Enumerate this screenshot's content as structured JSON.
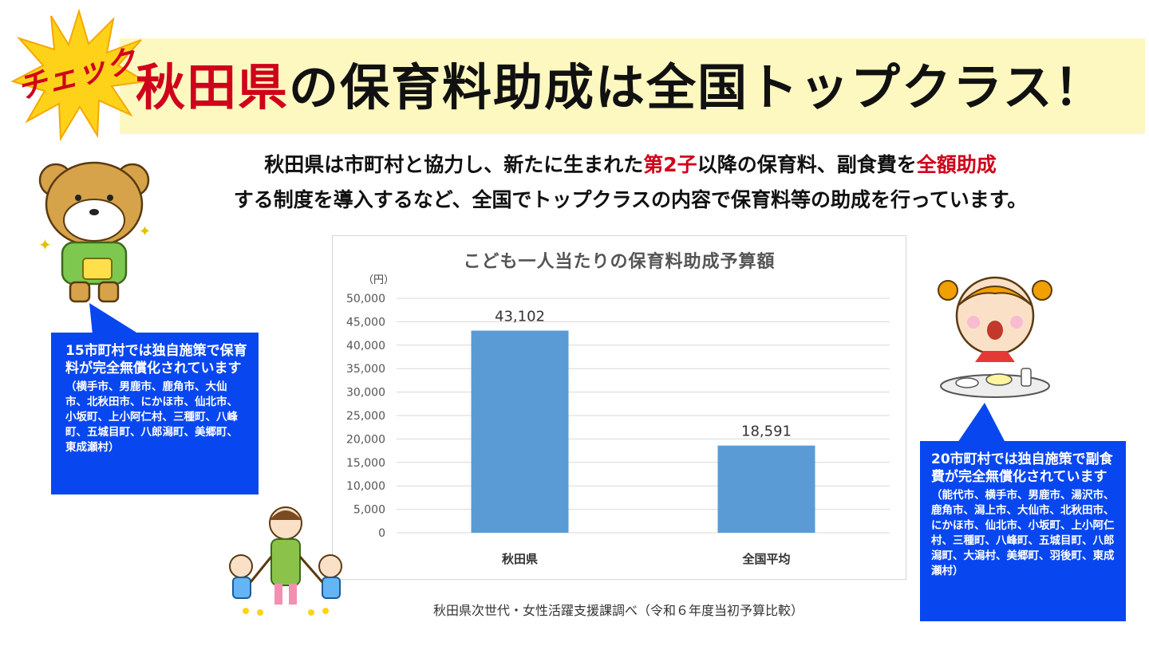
{
  "header": {
    "badge": "チェック",
    "title_highlight": "秋田県",
    "title_rest": "の保育料助成は全国トップクラス！"
  },
  "intro": {
    "line1_a": "秋田県は市町村と協力し、新たに生まれた",
    "line1_red1": "第2子",
    "line1_b": "以降の保育料、副食費を",
    "line1_red2": "全額助成",
    "line2": "する制度を導入するなど、全国でトップクラスの内容で保育料等の助成を行っています。"
  },
  "colors": {
    "accent_red": "#d0021b",
    "bar_blue": "#5b9bd5",
    "callout_blue": "#0847f0",
    "title_band": "#fdf8c0"
  },
  "chart_data": {
    "type": "bar",
    "title": "こども一人当たりの保育料助成予算額",
    "unit_label": "（円）",
    "categories": [
      "秋田県",
      "全国平均"
    ],
    "values": [
      43102,
      18591
    ],
    "value_labels": [
      "43,102",
      "18,591"
    ],
    "ylim": [
      0,
      50000
    ],
    "yticks": [
      0,
      5000,
      10000,
      15000,
      20000,
      25000,
      30000,
      35000,
      40000,
      45000,
      50000
    ],
    "ytick_labels": [
      "0",
      "5,000",
      "10,000",
      "15,000",
      "20,000",
      "25,000",
      "30,000",
      "35,000",
      "40,000",
      "45,000",
      "50,000"
    ],
    "grid": true,
    "xlabel": "",
    "ylabel": ""
  },
  "source": "秋田県次世代・女性活躍支援課調べ（令和６年度当初予算比較）",
  "callout_left": {
    "main": "15市町村では独自施策で保育料が完全無償化されています",
    "list": "（横手市、男鹿市、鹿角市、大仙市、北秋田市、にかほ市、仙北市、小坂町、上小阿仁村、三種町、八峰町、五城目町、八郎潟町、美郷町、東成瀬村）"
  },
  "callout_right": {
    "main": "20市町村では独自施策で副食費が完全無償化されています",
    "list": "（能代市、横手市、男鹿市、湯沢市、鹿角市、潟上市、大仙市、北秋田市、にかほ市、仙北市、小坂町、上小阿仁村、三種町、八峰町、五城目町、八郎潟町、大潟村、美郷町、羽後町、東成瀬村）"
  }
}
